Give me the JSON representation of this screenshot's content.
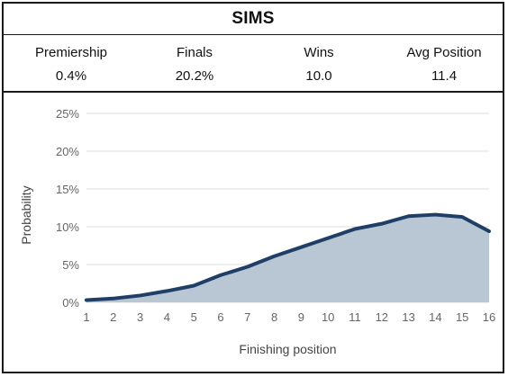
{
  "title": "SIMS",
  "stats": [
    {
      "label": "Premiership",
      "value": "0.4%"
    },
    {
      "label": "Finals",
      "value": "20.2%"
    },
    {
      "label": "Wins",
      "value": "10.0"
    },
    {
      "label": "Avg Position",
      "value": "11.4"
    }
  ],
  "colors": {
    "line": "#1f3f66",
    "fill": "#b9c6d3",
    "grid": "#dddddd"
  },
  "chart_data": {
    "type": "area",
    "xlabel": "Finishing position",
    "ylabel": "Probability",
    "x": [
      1,
      2,
      3,
      4,
      5,
      6,
      7,
      8,
      9,
      10,
      11,
      12,
      13,
      14,
      15,
      16
    ],
    "values": [
      0.3,
      0.5,
      0.9,
      1.5,
      2.2,
      3.6,
      4.7,
      6.1,
      7.3,
      8.5,
      9.7,
      10.4,
      11.4,
      11.6,
      11.3,
      9.4
    ],
    "ylim": [
      0,
      25
    ],
    "yticks": [
      "0%",
      "5%",
      "10%",
      "15%",
      "20%",
      "25%"
    ],
    "ytick_values": [
      0,
      5,
      10,
      15,
      20,
      25
    ],
    "xticks": [
      "1",
      "2",
      "3",
      "4",
      "5",
      "6",
      "7",
      "8",
      "9",
      "10",
      "11",
      "12",
      "13",
      "14",
      "15",
      "16"
    ],
    "grid": true
  }
}
